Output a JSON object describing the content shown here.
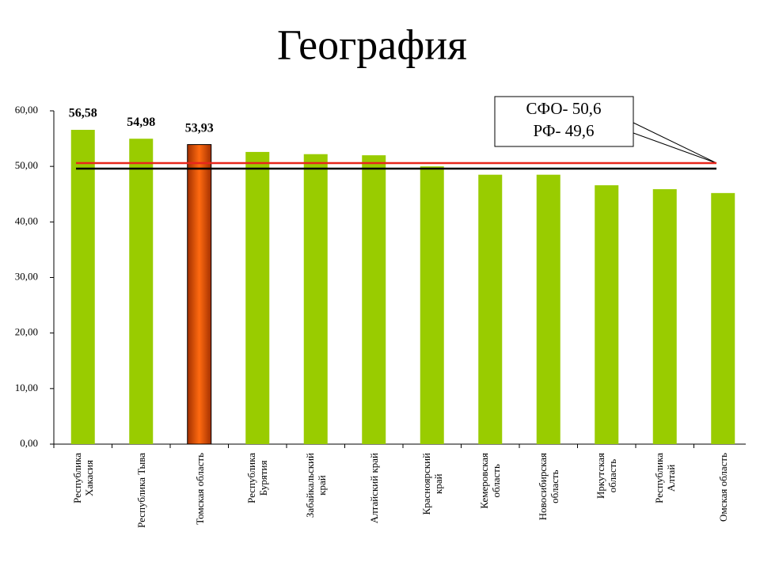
{
  "chart_data": {
    "type": "bar",
    "title": "География",
    "categories": [
      "Республика\nХакасия",
      "Республика Тыва",
      "Томская область",
      "Республика\nБурятия",
      "Забайкальский\nкрай",
      "Алтайский край",
      "Красноярский\nкрай",
      "Кемеровская\nобласть",
      "Новосибирская\nобласть",
      "Иркутская\nобласть",
      "Республика\nАлтай",
      "Омская область"
    ],
    "values": [
      56.58,
      54.98,
      53.93,
      52.6,
      52.2,
      52.0,
      50.0,
      48.5,
      48.5,
      46.6,
      45.9,
      45.2
    ],
    "value_labels": [
      "56,58",
      "54,98",
      "53,93",
      null,
      null,
      null,
      null,
      null,
      null,
      null,
      null,
      null
    ],
    "colors": [
      "#99cc00",
      "#99cc00",
      "#ff6600",
      "#99cc00",
      "#99cc00",
      "#99cc00",
      "#99cc00",
      "#99cc00",
      "#99cc00",
      "#99cc00",
      "#99cc00",
      "#99cc00"
    ],
    "ylim": [
      0,
      60
    ],
    "yticks": [
      {
        "value": 0,
        "label": "0,00"
      },
      {
        "value": 10,
        "label": "10,00"
      },
      {
        "value": 20,
        "label": "20,00"
      },
      {
        "value": 30,
        "label": "30,00"
      },
      {
        "value": 40,
        "label": "40,00"
      },
      {
        "value": 50,
        "label": "50,00"
      },
      {
        "value": 60,
        "label": "60,00"
      }
    ],
    "grid": false,
    "reference_lines": [
      {
        "value": 50.6,
        "label": "СФО- 50,6",
        "color": "#e8261c"
      },
      {
        "value": 49.6,
        "label": "РФ- 49,6",
        "color": "#000000"
      }
    ]
  }
}
